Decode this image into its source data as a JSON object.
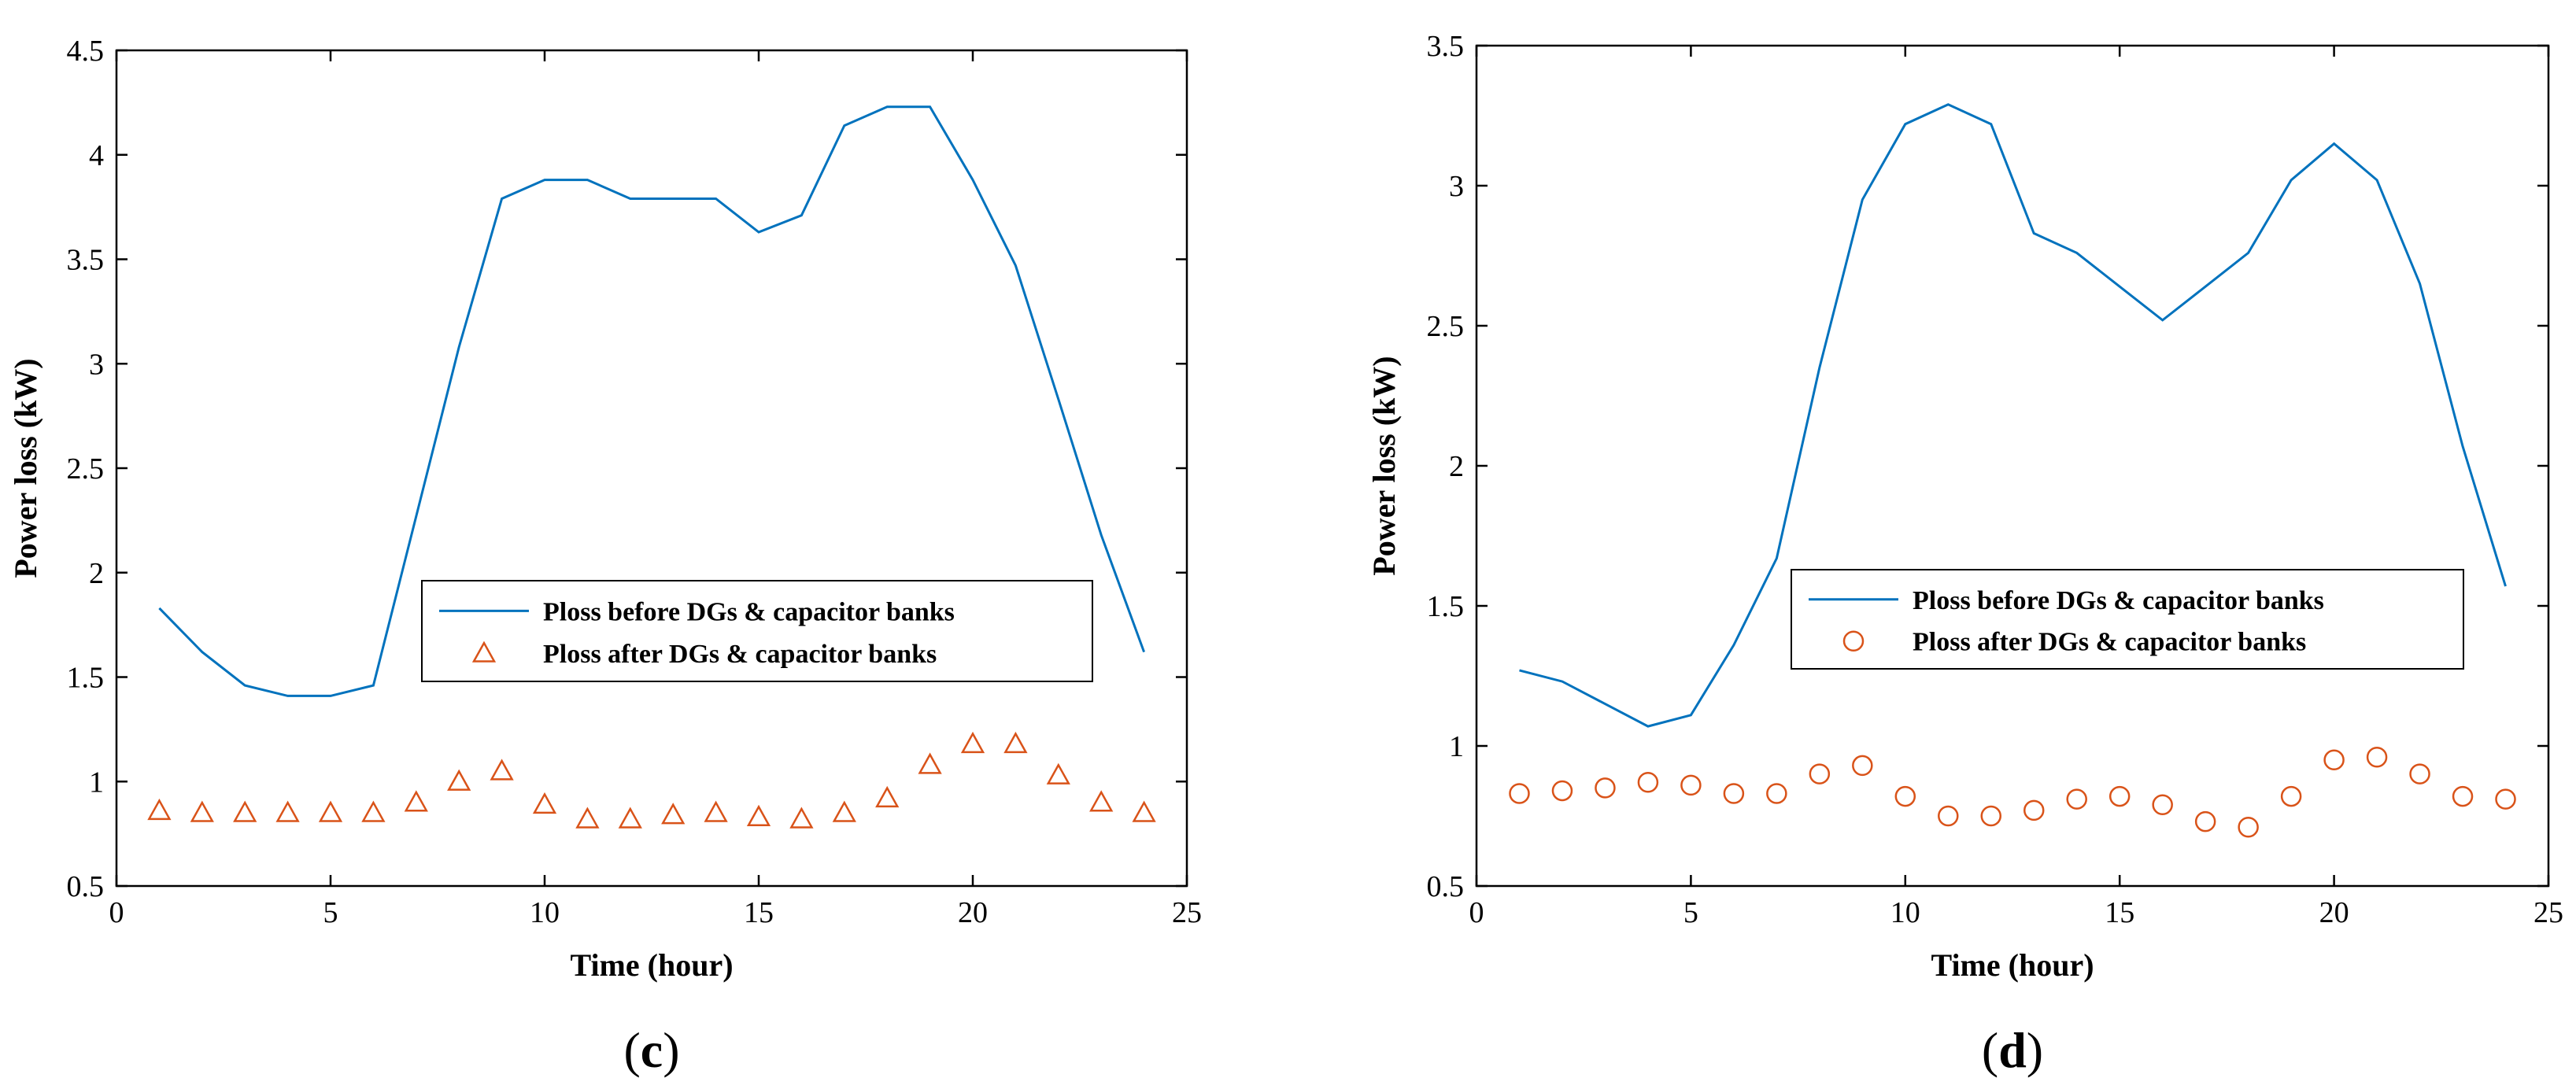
{
  "colors": {
    "before": "#0072BD",
    "after": "#D95319",
    "axis": "#000000"
  },
  "chart_data": [
    {
      "type": "line",
      "panel_label_open": "(",
      "panel_label": "c",
      "panel_label_close": ")",
      "xlabel": "Time (hour)",
      "ylabel": "Power loss (kW)",
      "xlim": [
        0,
        25
      ],
      "ylim": [
        0.5,
        4.5
      ],
      "xticks": [
        0,
        5,
        10,
        15,
        20,
        25
      ],
      "xtick_labels": [
        "0",
        "5",
        "10",
        "15",
        "20",
        "25"
      ],
      "yticks": [
        0.5,
        1,
        1.5,
        2,
        2.5,
        3,
        3.5,
        4,
        4.5
      ],
      "ytick_labels": [
        "0.5",
        "1",
        "1.5",
        "2",
        "2.5",
        "3",
        "3.5",
        "4",
        "4.5"
      ],
      "legend_position": "center-right",
      "marker": "triangle",
      "x": [
        1,
        2,
        3,
        4,
        5,
        6,
        7,
        8,
        9,
        10,
        11,
        12,
        13,
        14,
        15,
        16,
        17,
        18,
        19,
        20,
        21,
        22,
        23,
        24
      ],
      "series": [
        {
          "name": "Ploss before DGs & capacitor banks",
          "style": "line",
          "values": [
            1.83,
            1.62,
            1.46,
            1.41,
            1.41,
            1.46,
            2.27,
            3.08,
            3.79,
            3.88,
            3.88,
            3.79,
            3.79,
            3.79,
            3.63,
            3.71,
            4.14,
            4.23,
            4.23,
            3.88,
            3.47,
            2.83,
            2.18,
            1.62
          ]
        },
        {
          "name": "Ploss after DGs & capacitor banks",
          "style": "marker",
          "values": [
            0.86,
            0.85,
            0.85,
            0.85,
            0.85,
            0.85,
            0.9,
            1.0,
            1.05,
            0.89,
            0.82,
            0.82,
            0.84,
            0.85,
            0.83,
            0.82,
            0.85,
            0.92,
            1.08,
            1.18,
            1.18,
            1.03,
            0.9,
            0.85
          ]
        }
      ]
    },
    {
      "type": "line",
      "panel_label_open": "(",
      "panel_label": "d",
      "panel_label_close": ")",
      "xlabel": "Time (hour)",
      "ylabel": "Power loss (kW)",
      "xlim": [
        0,
        25
      ],
      "ylim": [
        0.5,
        3.5
      ],
      "xticks": [
        0,
        5,
        10,
        15,
        20,
        25
      ],
      "xtick_labels": [
        "0",
        "5",
        "10",
        "15",
        "20",
        "25"
      ],
      "yticks": [
        0.5,
        1,
        1.5,
        2,
        2.5,
        3,
        3.5
      ],
      "ytick_labels": [
        "0.5",
        "1",
        "1.5",
        "2",
        "2.5",
        "3",
        "3.5"
      ],
      "legend_position": "center-right",
      "marker": "circle",
      "x": [
        1,
        2,
        3,
        4,
        5,
        6,
        7,
        8,
        9,
        10,
        11,
        12,
        13,
        14,
        15,
        16,
        17,
        18,
        19,
        20,
        21,
        22,
        23,
        24
      ],
      "series": [
        {
          "name": "Ploss before DGs & capacitor banks",
          "style": "line",
          "values": [
            1.27,
            1.23,
            1.15,
            1.07,
            1.11,
            1.36,
            1.67,
            2.35,
            2.95,
            3.22,
            3.29,
            3.22,
            2.83,
            2.76,
            2.64,
            2.52,
            2.64,
            2.76,
            3.02,
            3.15,
            3.02,
            2.65,
            2.07,
            1.57
          ]
        },
        {
          "name": "Ploss after DGs & capacitor banks",
          "style": "marker",
          "values": [
            0.83,
            0.84,
            0.85,
            0.87,
            0.86,
            0.83,
            0.83,
            0.9,
            0.93,
            0.82,
            0.75,
            0.75,
            0.77,
            0.81,
            0.82,
            0.79,
            0.73,
            0.71,
            0.82,
            0.95,
            0.96,
            0.9,
            0.82,
            0.81
          ]
        }
      ]
    }
  ]
}
